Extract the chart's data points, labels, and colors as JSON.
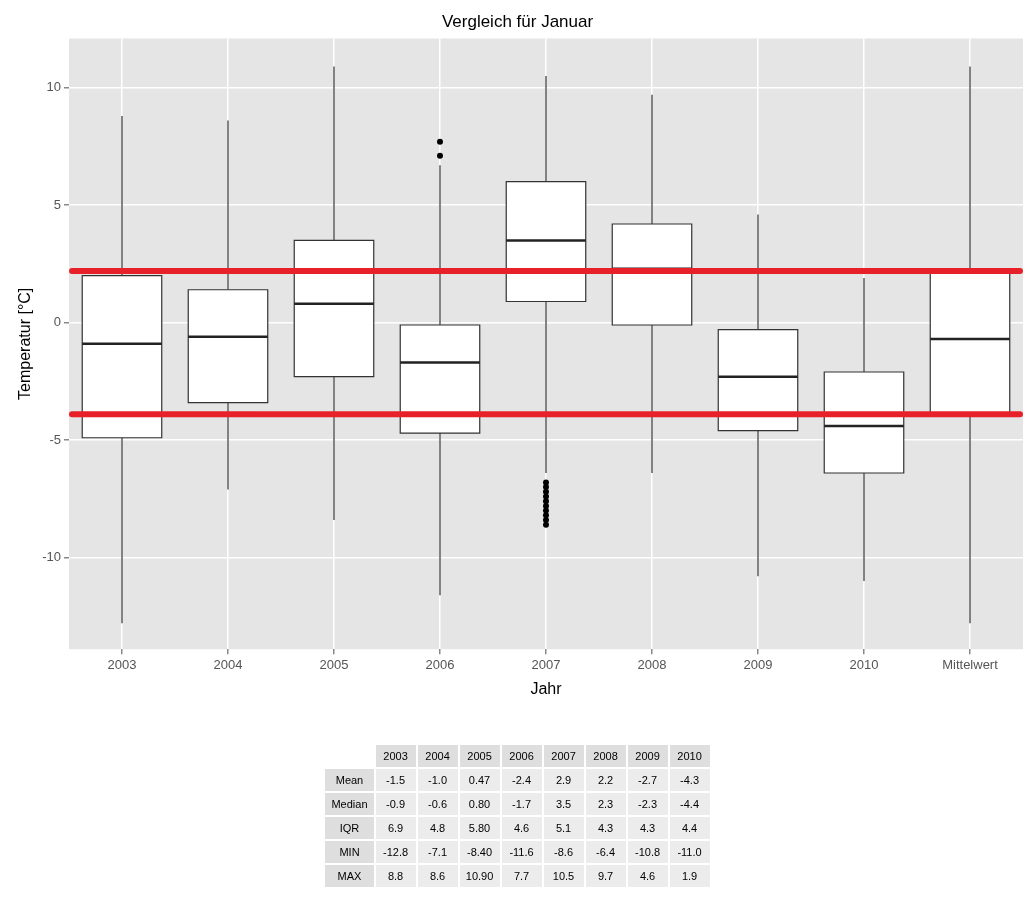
{
  "chart_data": {
    "type": "box",
    "title": "Vergleich für Januar",
    "xlabel": "Jahr",
    "ylabel": "Temperatur [°C]",
    "categories": [
      "2003",
      "2004",
      "2005",
      "2006",
      "2007",
      "2008",
      "2009",
      "2010",
      "Mittelwert"
    ],
    "boxes": [
      {
        "low": -12.8,
        "q1": -4.9,
        "median": -0.9,
        "q3": 2.0,
        "high": 8.8
      },
      {
        "low": -7.1,
        "q1": -3.4,
        "median": -0.6,
        "q3": 1.4,
        "high": 8.6
      },
      {
        "low": -8.4,
        "q1": -2.3,
        "median": 0.8,
        "q3": 3.5,
        "high": 10.9
      },
      {
        "low": -11.6,
        "q1": -4.7,
        "median": -1.7,
        "q3": -0.1,
        "high": 6.7,
        "outliers": [
          7.1,
          7.7
        ]
      },
      {
        "low": -6.4,
        "q1": 0.9,
        "median": 3.5,
        "q3": 6.0,
        "high": 10.5,
        "outliers": [
          -6.8,
          -7.0,
          -7.2,
          -7.4,
          -7.6,
          -7.8,
          -8.0,
          -8.2,
          -8.4,
          -8.6
        ]
      },
      {
        "low": -6.4,
        "q1": -0.1,
        "median": 2.3,
        "q3": 4.2,
        "high": 9.7
      },
      {
        "low": -10.8,
        "q1": -4.6,
        "median": -2.3,
        "q3": -0.3,
        "high": 4.6
      },
      {
        "low": -11.0,
        "q1": -6.4,
        "median": -4.4,
        "q3": -2.1,
        "high": 1.9
      },
      {
        "low": -12.8,
        "q1": -3.9,
        "median": -0.7,
        "q3": 2.2,
        "high": 10.9
      }
    ],
    "ylim": [
      -13.9,
      12.1
    ],
    "yticks": [
      -10,
      -5,
      0,
      5,
      10
    ],
    "grid": true,
    "ref_lines": [
      {
        "axis": "y",
        "value": 2.2,
        "color": "#e8202a"
      },
      {
        "axis": "y",
        "value": -3.9,
        "color": "#e8202a"
      }
    ],
    "annotations": [
      "2003",
      "2004",
      "2005",
      "2006",
      "2007",
      "2008",
      "2009",
      "2010",
      "Mean",
      "-1.5",
      "-1.0",
      "0.47",
      "-2.4",
      "2.9",
      "2.2",
      "-2.7",
      "-4.3",
      "Median",
      "-0.9",
      "-0.6",
      "0.80",
      "-1.7",
      "3.5",
      "2.3",
      "-2.3",
      "-4.4",
      "IQR",
      "6.9",
      "4.8",
      "5.80",
      "4.6",
      "5.1",
      "4.3",
      "4.3",
      "4.4",
      "MIN",
      "-12.8",
      "-7.1",
      "-8.40",
      "-11.6",
      "-8.6",
      "-6.4",
      "-10.8",
      "-11.0",
      "MAX",
      "8.8",
      "8.6",
      "10.90",
      "7.7",
      "10.5",
      "9.7",
      "4.6",
      "1.9"
    ]
  }
}
